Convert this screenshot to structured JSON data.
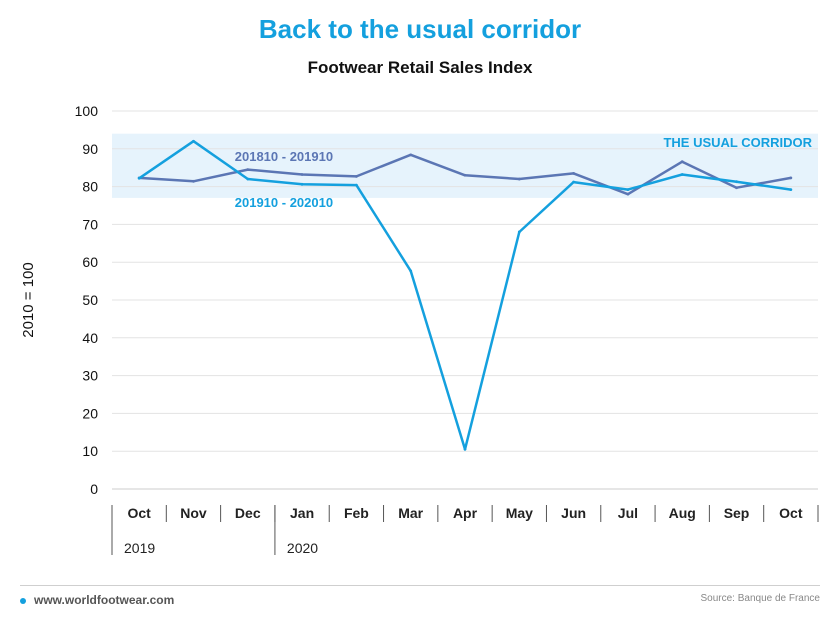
{
  "headline": "Back to the usual corridor",
  "footer": {
    "site": "www.worldfootwear.com",
    "source": "Source: Banque de France"
  },
  "colors": {
    "title": "#14a0de",
    "series_recent": "#14a0de",
    "series_prior": "#5b76b4",
    "corridor_fill": "#e6f3fc"
  },
  "chart_data": {
    "type": "line",
    "title": "Footwear Retail Sales Index",
    "ylabel": "2010 = 100",
    "xlabel": "",
    "ylim": [
      0,
      100
    ],
    "yticks": [
      0,
      10,
      20,
      30,
      40,
      50,
      60,
      70,
      80,
      90,
      100
    ],
    "grid": true,
    "categories": [
      "Oct",
      "Nov",
      "Dec",
      "Jan",
      "Feb",
      "Mar",
      "Apr",
      "May",
      "Jun",
      "Jul",
      "Aug",
      "Sep",
      "Oct"
    ],
    "year_labels": [
      {
        "label": "2019",
        "start": 0
      },
      {
        "label": "2020",
        "start": 3
      }
    ],
    "corridor": {
      "label": "THE USUAL CORRIDOR",
      "y_range": [
        77,
        94
      ]
    },
    "series": [
      {
        "name": "201810 - 201910",
        "color": "#5b76b4",
        "values": [
          82.3,
          81.4,
          84.5,
          83.2,
          82.7,
          88.4,
          83.0,
          82.0,
          83.5,
          78.0,
          86.6,
          79.7,
          82.3
        ]
      },
      {
        "name": "201910 - 202010",
        "color": "#14a0de",
        "values": [
          82.2,
          92.0,
          82.0,
          80.6,
          80.4,
          57.7,
          10.5,
          68.0,
          81.2,
          79.2,
          83.2,
          81.3,
          79.2
        ]
      }
    ]
  }
}
